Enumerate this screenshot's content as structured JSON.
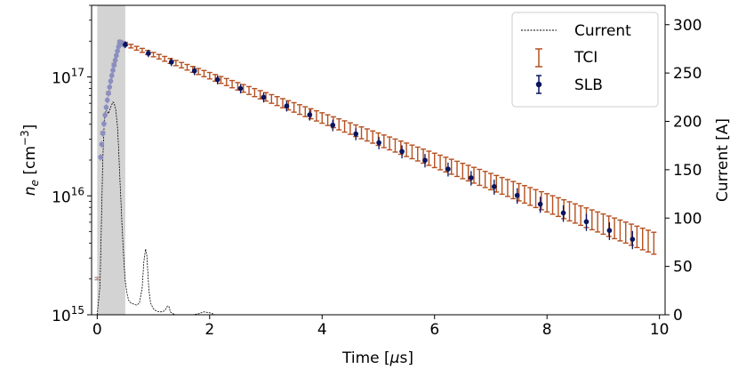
{
  "chart_data": {
    "type": "line",
    "xlabel": "Time [μs]",
    "ylabel_left": "n_e [cm^-3]",
    "ylabel_right": "Current [A]",
    "xlim": [
      -0.1,
      10.1
    ],
    "ylim_left": [
      1000000000000000.0,
      4e+17
    ],
    "ylim_right": [
      0,
      320
    ],
    "y_left_scale": "log",
    "x_ticks": [
      "0",
      "2",
      "4",
      "6",
      "8",
      "10"
    ],
    "y_left_ticks": [
      {
        "value": 1000000000000000.0,
        "base": "10",
        "exp": "15"
      },
      {
        "value": 1e+16,
        "base": "10",
        "exp": "16"
      },
      {
        "value": 1e+17,
        "base": "10",
        "exp": "17"
      }
    ],
    "y_right_ticks": [
      "0",
      "50",
      "100",
      "150",
      "200",
      "250",
      "300"
    ],
    "shaded_region": {
      "x_start": 0.0,
      "x_end": 0.5,
      "color": "#d3d3d3"
    },
    "legend": {
      "placement": "top-right",
      "entries": [
        "Current",
        "TCI",
        "SLB"
      ]
    },
    "colors": {
      "current": "#000000",
      "tci": "#b5501f",
      "tci_light": "#b59090",
      "slb": "#0a1560",
      "slb_light": "#8a8fc0"
    },
    "series": [
      {
        "name": "Current",
        "axis": "right",
        "style": "dashed",
        "x": [
          0.0,
          0.05,
          0.1,
          0.13,
          0.16,
          0.2,
          0.25,
          0.28,
          0.3,
          0.33,
          0.36,
          0.38,
          0.4,
          0.42,
          0.44,
          0.46,
          0.48,
          0.5,
          0.53,
          0.56,
          0.6,
          0.65,
          0.7,
          0.75,
          0.8,
          0.83,
          0.86,
          0.88,
          0.9,
          0.92,
          0.95,
          1.0,
          1.05,
          1.1,
          1.15,
          1.2,
          1.25,
          1.28,
          1.3,
          1.35,
          1.4,
          1.5,
          1.6,
          1.7,
          1.8,
          1.9,
          2.0,
          2.05,
          2.1,
          2.2,
          2.5,
          3.0
        ],
        "y": [
          0,
          30,
          160,
          205,
          212,
          208,
          216,
          220,
          219,
          212,
          195,
          172,
          145,
          120,
          95,
          72,
          50,
          35,
          22,
          15,
          12,
          11,
          10,
          12,
          28,
          55,
          68,
          63,
          45,
          25,
          12,
          6,
          4,
          3,
          3,
          4,
          9,
          8,
          3,
          1,
          0,
          0,
          0,
          0,
          1,
          3,
          2,
          1,
          0,
          0,
          0,
          0
        ]
      },
      {
        "name": "TCI",
        "axis": "left",
        "x_start": 0.0,
        "x_step": 0.1,
        "y_start": 2000000000000000.0,
        "y_peak": 1.95e+17,
        "t_peak": 0.4,
        "y_end": 3800000000000000.0,
        "t_end": 9.9,
        "err_low_frac": 0.03,
        "err_high_frac": 0.3
      },
      {
        "name": "SLB",
        "axis": "left",
        "x_start": 0.0,
        "x_step_early": 0.02,
        "x_step_late": 0.41,
        "err_frac": 0.06
      }
    ]
  }
}
